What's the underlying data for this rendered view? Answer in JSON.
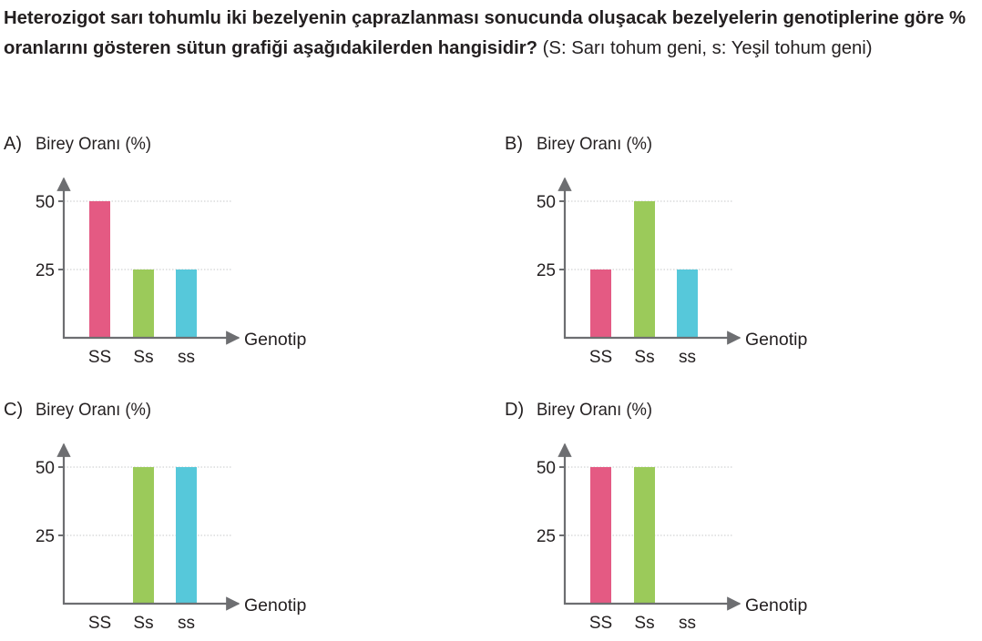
{
  "question": {
    "bold": "Heterozigot sarı tohumlu iki bezelyenin çaprazlanması sonucunda oluşacak bezelyelerin genotiple­rine göre % oranlarını gösteren sütun grafiği aşağıdakilerden hangisidir?",
    "normal": " (S: Sarı tohum geni, s: Yeşil tohum geni)"
  },
  "colors": {
    "SS": "#e45a83",
    "Ss": "#9bca5a",
    "ss": "#56c8da"
  },
  "chart_data": [
    {
      "option": "A)",
      "type": "bar",
      "ylabel": "Birey Oranı (%)",
      "xlabel": "Genotip",
      "categories": [
        "SS",
        "Ss",
        "ss"
      ],
      "values": [
        50,
        25,
        25
      ],
      "yticks": [
        50,
        25
      ],
      "ylim": [
        0,
        75
      ]
    },
    {
      "option": "B)",
      "type": "bar",
      "ylabel": "Birey Oranı (%)",
      "xlabel": "Genotip",
      "categories": [
        "SS",
        "Ss",
        "ss"
      ],
      "values": [
        25,
        50,
        25
      ],
      "yticks": [
        50,
        25
      ],
      "ylim": [
        0,
        75
      ]
    },
    {
      "option": "C)",
      "type": "bar",
      "ylabel": "Birey Oranı (%)",
      "xlabel": "Genotip",
      "categories": [
        "SS",
        "Ss",
        "ss"
      ],
      "values": [
        0,
        50,
        50
      ],
      "yticks": [
        50,
        25
      ],
      "ylim": [
        0,
        75
      ]
    },
    {
      "option": "D)",
      "type": "bar",
      "ylabel": "Birey Oranı (%)",
      "xlabel": "Genotip",
      "categories": [
        "SS",
        "Ss",
        "ss"
      ],
      "values": [
        50,
        50,
        0
      ],
      "yticks": [
        50,
        25
      ],
      "ylim": [
        0,
        75
      ]
    }
  ]
}
